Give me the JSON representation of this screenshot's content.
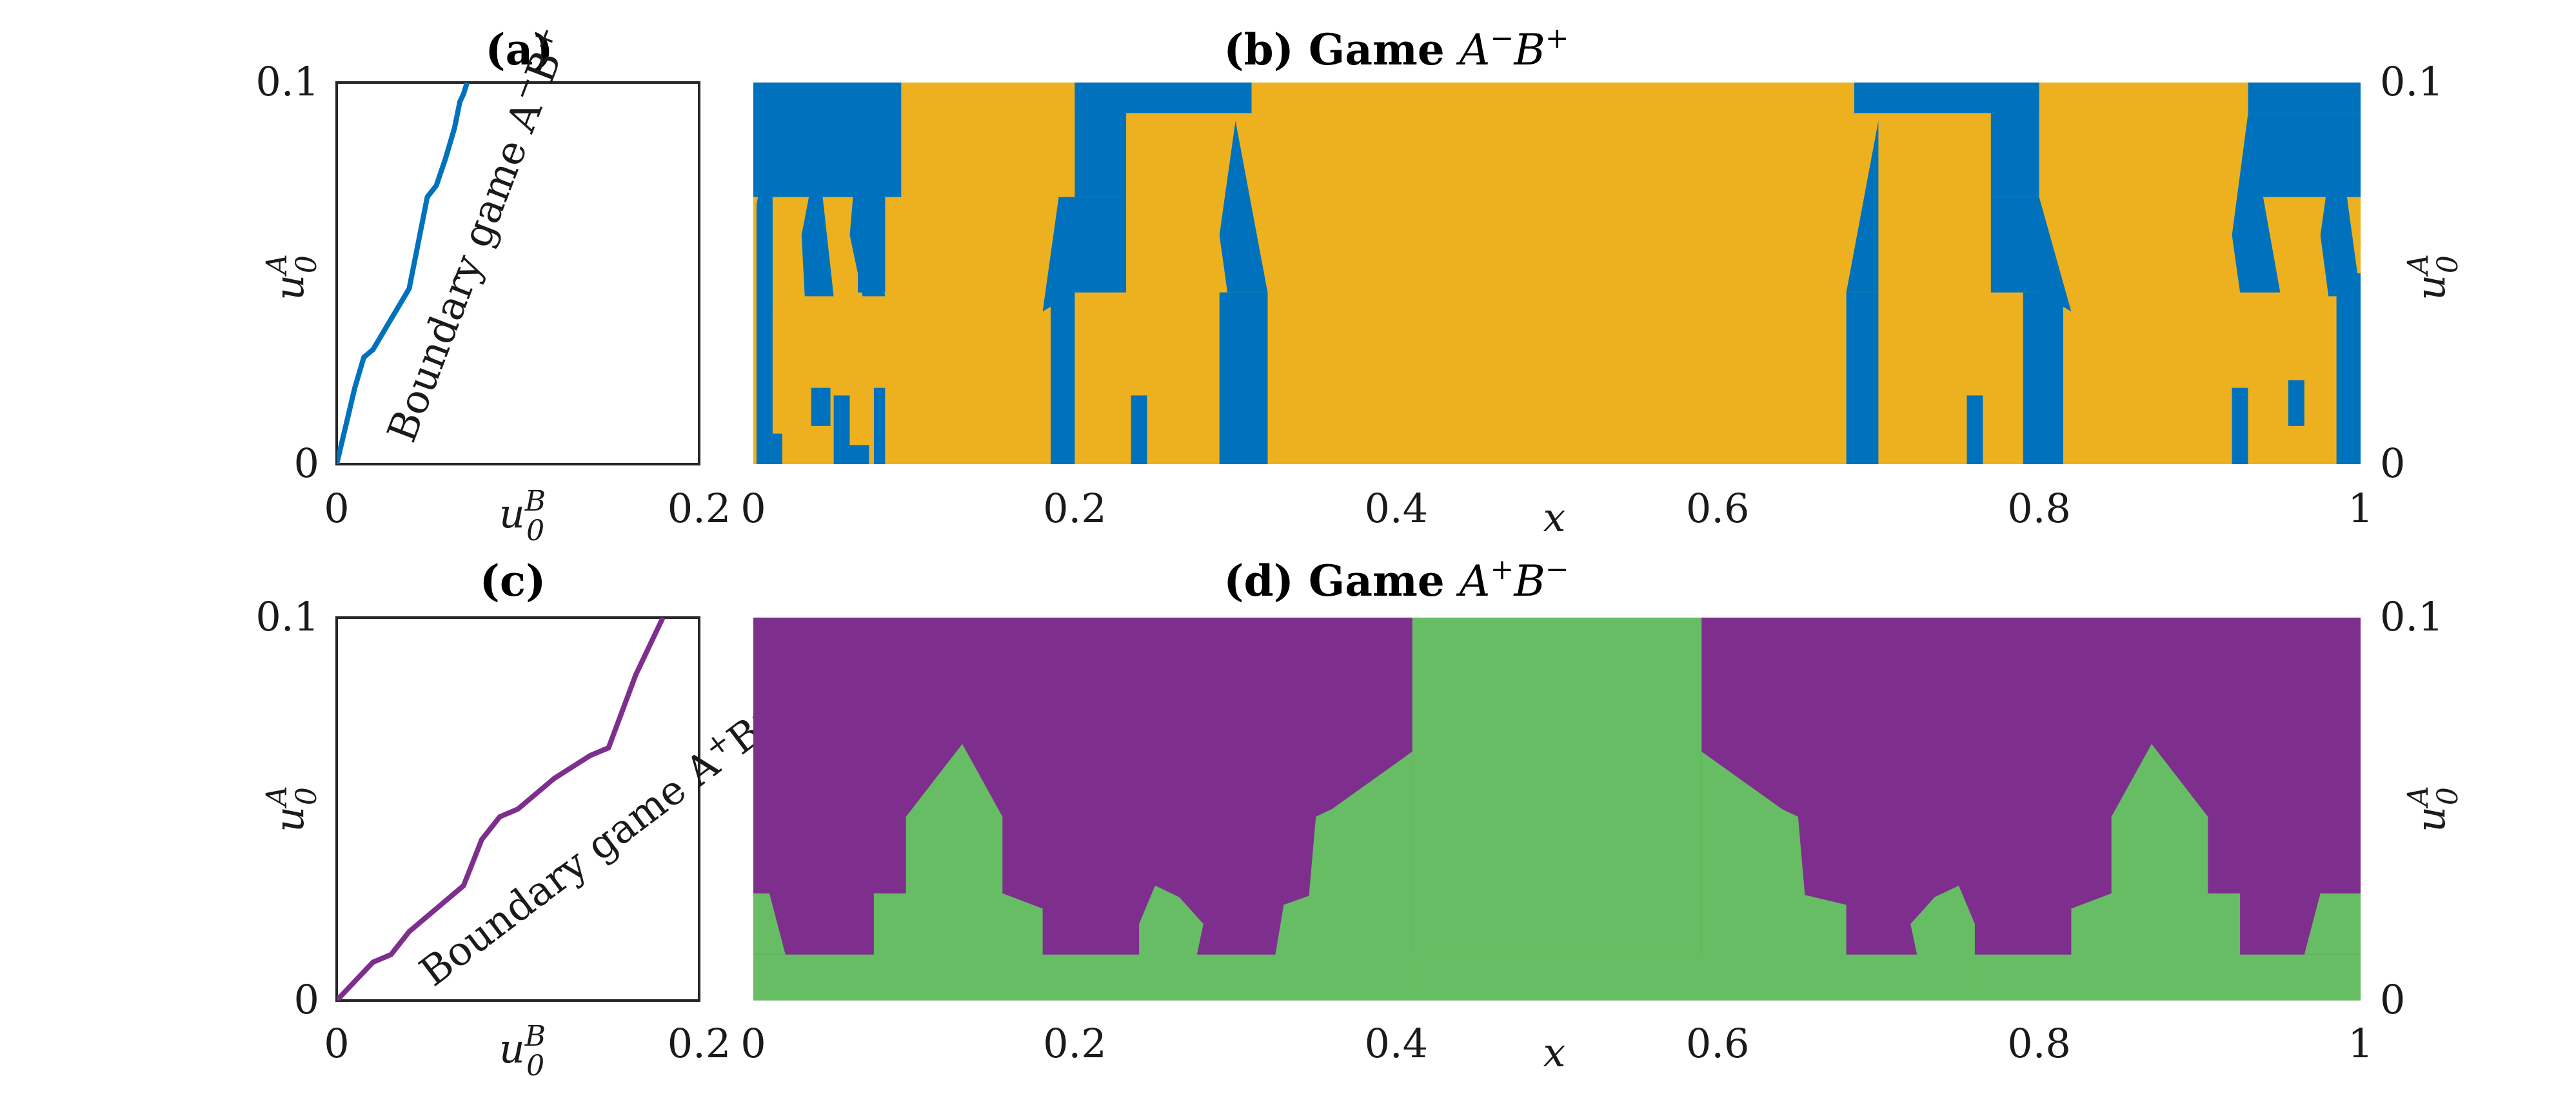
{
  "chart_data": [
    {
      "panel_label": "(a)",
      "type": "line",
      "xlabel": "u_0^B",
      "ylabel": "u_0^A",
      "xlim": [
        0,
        0.2
      ],
      "ylim": [
        0,
        0.1
      ],
      "xticks": [
        "0",
        "0.2"
      ],
      "yticks": [
        "0",
        "0.1"
      ],
      "annotation": "Boundary game A^- B^+",
      "color": "#0072BD",
      "x": [
        0,
        0.003,
        0.006,
        0.01,
        0.015,
        0.02,
        0.03,
        0.035,
        0.04,
        0.045,
        0.05,
        0.055,
        0.06,
        0.065,
        0.068,
        0.07,
        0.072
      ],
      "y": [
        0,
        0.006,
        0.012,
        0.02,
        0.028,
        0.03,
        0.038,
        0.042,
        0.046,
        0.058,
        0.07,
        0.073,
        0.08,
        0.088,
        0.095,
        0.097,
        0.1
      ]
    },
    {
      "panel_label": "(b)",
      "type": "heatmap",
      "title": "Game A^- B^+",
      "xlabel": "x",
      "ylabel": "u_0^A",
      "xlim": [
        0,
        1
      ],
      "ylim": [
        0,
        0.1
      ],
      "xticks": [
        "0",
        "0.2",
        "0.4",
        "0.6",
        "0.8",
        "1"
      ],
      "yticks": [
        "0",
        "0.1"
      ],
      "colors": {
        "background": "#EDB120",
        "region": "#0072BD"
      },
      "rects": [
        [
          0.0,
          0.072,
          0.092,
          0.1
        ],
        [
          0.0,
          0.092,
          0.07,
          0.1
        ],
        [
          0.002,
          0.012,
          0.0,
          0.068
        ],
        [
          0.012,
          0.018,
          0.0,
          0.008
        ],
        [
          0.036,
          0.048,
          0.01,
          0.02
        ],
        [
          0.058,
          0.072,
          0.0,
          0.005
        ],
        [
          0.065,
          0.082,
          0.045,
          0.09
        ],
        [
          0.05,
          0.06,
          0.0,
          0.018
        ],
        [
          0.075,
          0.082,
          0.0,
          0.02
        ],
        [
          0.2,
          0.31,
          0.092,
          0.1
        ],
        [
          0.2,
          0.232,
          0.07,
          0.1
        ],
        [
          0.185,
          0.2,
          0.0,
          0.045
        ],
        [
          0.235,
          0.245,
          0.0,
          0.018
        ],
        [
          0.29,
          0.32,
          0.0,
          0.045
        ],
        [
          0.685,
          0.8,
          0.092,
          0.1
        ],
        [
          0.77,
          0.8,
          0.07,
          0.1
        ],
        [
          0.68,
          0.7,
          0.0,
          0.045
        ],
        [
          0.755,
          0.765,
          0.0,
          0.018
        ],
        [
          0.79,
          0.815,
          0.0,
          0.045
        ],
        [
          0.93,
          1.0,
          0.092,
          0.1
        ],
        [
          0.93,
          1.0,
          0.07,
          0.092
        ],
        [
          0.92,
          0.93,
          0.0,
          0.02
        ],
        [
          0.955,
          0.965,
          0.01,
          0.022
        ],
        [
          0.985,
          1.0,
          0.0,
          0.05
        ]
      ],
      "polys": [
        [
          [
            0.012,
            0.09
          ],
          [
            0.002,
            0.068
          ],
          [
            0.004,
            0.04
          ],
          [
            0.012,
            0.04
          ]
        ],
        [
          [
            0.04,
            0.082
          ],
          [
            0.03,
            0.06
          ],
          [
            0.032,
            0.044
          ],
          [
            0.05,
            0.044
          ]
        ],
        [
          [
            0.065,
            0.085
          ],
          [
            0.06,
            0.06
          ],
          [
            0.068,
            0.044
          ],
          [
            0.082,
            0.044
          ]
        ],
        [
          [
            0.19,
            0.07
          ],
          [
            0.18,
            0.04
          ],
          [
            0.2,
            0.045
          ],
          [
            0.232,
            0.045
          ],
          [
            0.232,
            0.07
          ]
        ],
        [
          [
            0.3,
            0.09
          ],
          [
            0.29,
            0.06
          ],
          [
            0.295,
            0.045
          ],
          [
            0.32,
            0.045
          ]
        ],
        [
          [
            0.7,
            0.09
          ],
          [
            0.68,
            0.045
          ],
          [
            0.7,
            0.045
          ]
        ],
        [
          [
            0.77,
            0.07
          ],
          [
            0.77,
            0.045
          ],
          [
            0.8,
            0.045
          ],
          [
            0.82,
            0.04
          ],
          [
            0.8,
            0.07
          ]
        ],
        [
          [
            0.93,
            0.092
          ],
          [
            0.92,
            0.06
          ],
          [
            0.925,
            0.045
          ],
          [
            0.95,
            0.045
          ]
        ],
        [
          [
            0.985,
            0.09
          ],
          [
            0.975,
            0.06
          ],
          [
            0.98,
            0.044
          ],
          [
            1.0,
            0.044
          ]
        ]
      ]
    },
    {
      "panel_label": "(c)",
      "type": "line",
      "xlabel": "u_0^B",
      "ylabel": "u_0^A",
      "xlim": [
        0,
        0.2
      ],
      "ylim": [
        0,
        0.1
      ],
      "xticks": [
        "0",
        "0.2"
      ],
      "yticks": [
        "0",
        "0.1"
      ],
      "annotation": "Boundary game A^+ B^-",
      "color": "#7E2F8E",
      "x": [
        0,
        0.01,
        0.02,
        0.03,
        0.04,
        0.05,
        0.06,
        0.07,
        0.075,
        0.08,
        0.09,
        0.1,
        0.12,
        0.14,
        0.15,
        0.165,
        0.18
      ],
      "y": [
        0,
        0.005,
        0.01,
        0.012,
        0.018,
        0.022,
        0.026,
        0.03,
        0.036,
        0.042,
        0.048,
        0.05,
        0.058,
        0.064,
        0.066,
        0.085,
        0.1
      ]
    },
    {
      "panel_label": "(d)",
      "type": "heatmap",
      "title": "Game A^+ B^-",
      "xlabel": "x",
      "ylabel": "u_0^A",
      "xlim": [
        0,
        1
      ],
      "ylim": [
        0,
        0.1
      ],
      "xticks": [
        "0",
        "0.2",
        "0.4",
        "0.6",
        "0.8",
        "1"
      ],
      "yticks": [
        "0",
        "0.1"
      ],
      "colors": {
        "background": "#7E2F8E",
        "region": "#66BD63"
      },
      "rects": [
        [
          0.41,
          0.59,
          0.0,
          0.1
        ],
        [
          0.0,
          1.0,
          0.0,
          0.012
        ]
      ],
      "polys": [
        [
          [
            0.35,
            0.048
          ],
          [
            0.36,
            0.05
          ],
          [
            0.41,
            0.065
          ],
          [
            0.41,
            0.0
          ],
          [
            0.34,
            0.0
          ]
        ],
        [
          [
            0.59,
            0.065
          ],
          [
            0.64,
            0.05
          ],
          [
            0.65,
            0.048
          ],
          [
            0.66,
            0.0
          ],
          [
            0.59,
            0.0
          ]
        ],
        [
          [
            0.33,
            0.025
          ],
          [
            0.35,
            0.028
          ],
          [
            0.35,
            0.0
          ],
          [
            0.32,
            0.0
          ]
        ],
        [
          [
            0.65,
            0.028
          ],
          [
            0.68,
            0.025
          ],
          [
            0.68,
            0.0
          ],
          [
            0.65,
            0.0
          ]
        ],
        [
          [
            0.095,
            0.048
          ],
          [
            0.13,
            0.067
          ],
          [
            0.155,
            0.048
          ],
          [
            0.155,
            0.028
          ],
          [
            0.18,
            0.024
          ],
          [
            0.18,
            0.0
          ],
          [
            0.075,
            0.0
          ],
          [
            0.075,
            0.028
          ],
          [
            0.095,
            0.028
          ]
        ],
        [
          [
            0.845,
            0.048
          ],
          [
            0.87,
            0.067
          ],
          [
            0.905,
            0.048
          ],
          [
            0.905,
            0.028
          ],
          [
            0.925,
            0.028
          ],
          [
            0.925,
            0.0
          ],
          [
            0.82,
            0.0
          ],
          [
            0.82,
            0.024
          ],
          [
            0.845,
            0.028
          ]
        ],
        [
          [
            0.25,
            0.03
          ],
          [
            0.265,
            0.027
          ],
          [
            0.28,
            0.02
          ],
          [
            0.27,
            0.0
          ],
          [
            0.24,
            0.0
          ],
          [
            0.24,
            0.02
          ]
        ],
        [
          [
            0.72,
            0.02
          ],
          [
            0.735,
            0.027
          ],
          [
            0.75,
            0.03
          ],
          [
            0.76,
            0.02
          ],
          [
            0.76,
            0.0
          ],
          [
            0.73,
            0.0
          ]
        ],
        [
          [
            0.0,
            0.028
          ],
          [
            0.01,
            0.028
          ],
          [
            0.02,
            0.012
          ],
          [
            0.0,
            0.012
          ]
        ],
        [
          [
            0.975,
            0.028
          ],
          [
            1.0,
            0.028
          ],
          [
            1.0,
            0.012
          ],
          [
            0.965,
            0.012
          ]
        ]
      ]
    }
  ]
}
